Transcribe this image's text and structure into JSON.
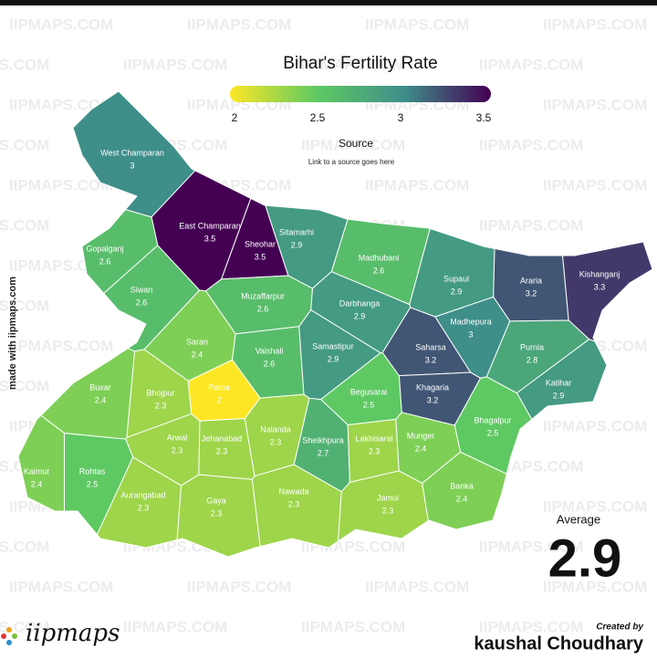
{
  "title": "Bihar's Fertility Rate",
  "legend": {
    "ticks": [
      2,
      2.5,
      3,
      3.5
    ],
    "colors": [
      "#fde725",
      "#5ec962",
      "#3e8e8a",
      "#440154"
    ]
  },
  "source": "Source",
  "source_link": "Link to a source goes here",
  "side_note": "made with iipmaps.com",
  "watermark": "IIPMAPS.COM",
  "average": {
    "label": "Average",
    "value": 2.9
  },
  "logo": "iipmaps",
  "credit": {
    "label": "Created by",
    "name": "kaushal Choudhary"
  },
  "districts": [
    {
      "name": "West Champaran",
      "value": 3
    },
    {
      "name": "East Champaran",
      "value": 3.5
    },
    {
      "name": "Sheohar",
      "value": 3.5
    },
    {
      "name": "Sitamarhi",
      "value": 2.9
    },
    {
      "name": "Madhubani",
      "value": 2.6
    },
    {
      "name": "Supaul",
      "value": 2.9
    },
    {
      "name": "Araria",
      "value": 3.2
    },
    {
      "name": "Kishanganj",
      "value": 3.3
    },
    {
      "name": "Gopalganj",
      "value": 2.6
    },
    {
      "name": "Siwan",
      "value": 2.6
    },
    {
      "name": "Muzaffarpur",
      "value": 2.6
    },
    {
      "name": "Darbhanga",
      "value": 2.9
    },
    {
      "name": "Madhepura",
      "value": 3
    },
    {
      "name": "Saharsa",
      "value": 3.2
    },
    {
      "name": "Purnia",
      "value": 2.8
    },
    {
      "name": "Saran",
      "value": 2.4
    },
    {
      "name": "Vaishali",
      "value": 2.6
    },
    {
      "name": "Samastipur",
      "value": 2.9
    },
    {
      "name": "Khagaria",
      "value": 3.2
    },
    {
      "name": "Katihar",
      "value": 2.9
    },
    {
      "name": "Buxar",
      "value": 2.4
    },
    {
      "name": "Bhojpur",
      "value": 2.3
    },
    {
      "name": "Patna",
      "value": 2
    },
    {
      "name": "Begusarai",
      "value": 2.5
    },
    {
      "name": "Bhagalpur",
      "value": 2.5
    },
    {
      "name": "Arwal",
      "value": 2.3
    },
    {
      "name": "Jehanabad",
      "value": 2.3
    },
    {
      "name": "Nalanda",
      "value": 2.3
    },
    {
      "name": "Sheikhpura",
      "value": 2.7
    },
    {
      "name": "Lakhisarai",
      "value": 2.3
    },
    {
      "name": "Munger",
      "value": 2.4
    },
    {
      "name": "Kaimur",
      "value": 2.4
    },
    {
      "name": "Rohtas",
      "value": 2.5
    },
    {
      "name": "Aurangabad",
      "value": 2.3
    },
    {
      "name": "Gaya",
      "value": 2.3
    },
    {
      "name": "Nawada",
      "value": 2.3
    },
    {
      "name": "Jamui",
      "value": 2.3
    },
    {
      "name": "Banka",
      "value": 2.4
    }
  ]
}
